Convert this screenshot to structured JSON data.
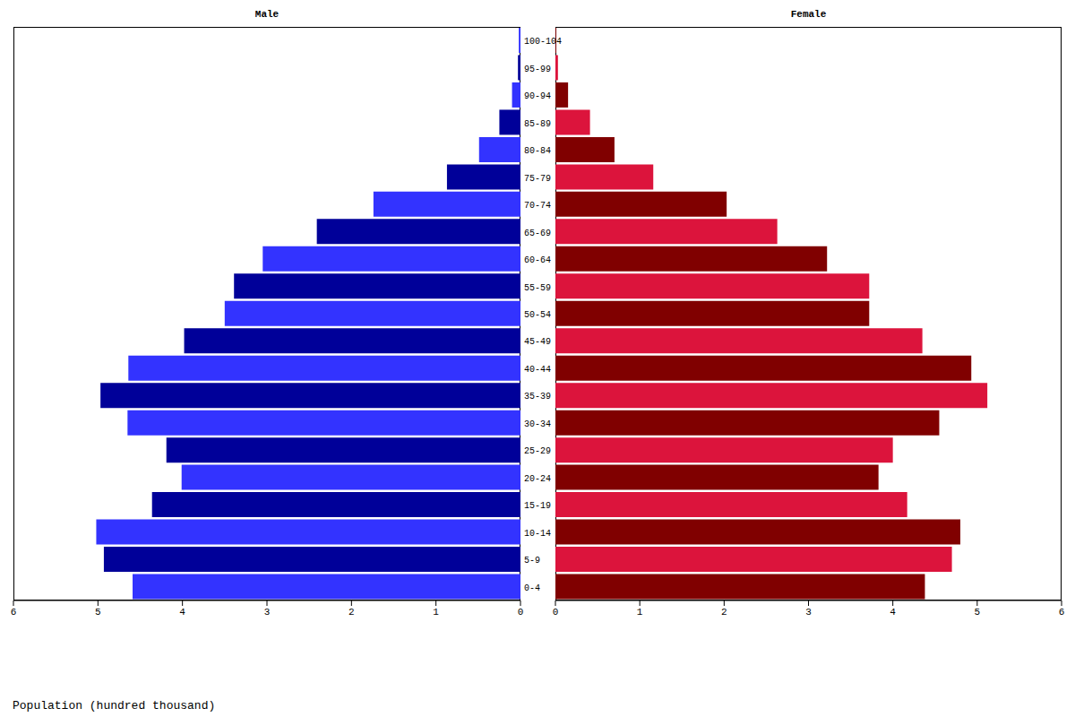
{
  "chart_data": [
    {
      "type": "bar",
      "orientation": "horizontal",
      "title": "Male",
      "xlabel": "Population (hundred thousand)",
      "categories": [
        "0-4",
        "5-9",
        "10-14",
        "15-19",
        "20-24",
        "25-29",
        "30-34",
        "35-39",
        "40-44",
        "45-49",
        "50-54",
        "55-59",
        "60-64",
        "65-69",
        "70-74",
        "75-79",
        "80-84",
        "85-89",
        "90-94",
        "95-99",
        "100-104"
      ],
      "values": [
        4.59,
        4.93,
        5.02,
        4.36,
        4.01,
        4.19,
        4.65,
        4.97,
        4.64,
        3.98,
        3.5,
        3.39,
        3.05,
        2.41,
        1.74,
        0.87,
        0.49,
        0.25,
        0.1,
        0.03,
        0.02
      ],
      "colors": [
        "#3333ff",
        "#000099",
        "#3333ff",
        "#000099",
        "#3333ff",
        "#000099",
        "#3333ff",
        "#000099",
        "#3333ff",
        "#000099",
        "#3333ff",
        "#000099",
        "#3333ff",
        "#000099",
        "#3333ff",
        "#000099",
        "#3333ff",
        "#000099",
        "#3333ff",
        "#000099",
        "#3333ff"
      ],
      "xlim": [
        6,
        0
      ],
      "xticks": [
        6,
        5,
        4,
        3,
        2,
        1,
        0
      ],
      "tick_labels": "x",
      "grid": false
    },
    {
      "type": "bar",
      "orientation": "horizontal",
      "title": "Female",
      "categories": [
        "0-4",
        "5-9",
        "10-14",
        "15-19",
        "20-24",
        "25-29",
        "30-34",
        "35-39",
        "40-44",
        "45-49",
        "50-54",
        "55-59",
        "60-64",
        "65-69",
        "70-74",
        "75-79",
        "80-84",
        "85-89",
        "90-94",
        "95-99",
        "100-104"
      ],
      "values": [
        4.38,
        4.7,
        4.8,
        4.17,
        3.83,
        4.0,
        4.55,
        5.12,
        4.93,
        4.35,
        3.72,
        3.72,
        3.22,
        2.63,
        2.03,
        1.16,
        0.7,
        0.41,
        0.15,
        0.03,
        0.01
      ],
      "colors": [
        "#800000",
        "#dc143c",
        "#800000",
        "#dc143c",
        "#800000",
        "#dc143c",
        "#800000",
        "#dc143c",
        "#800000",
        "#dc143c",
        "#800000",
        "#dc143c",
        "#800000",
        "#dc143c",
        "#800000",
        "#dc143c",
        "#800000",
        "#dc143c",
        "#800000",
        "#dc143c",
        "#800000"
      ],
      "xlim": [
        0,
        6
      ],
      "xticks": [
        0,
        1,
        2,
        3,
        4,
        5,
        6
      ],
      "grid": false
    }
  ]
}
